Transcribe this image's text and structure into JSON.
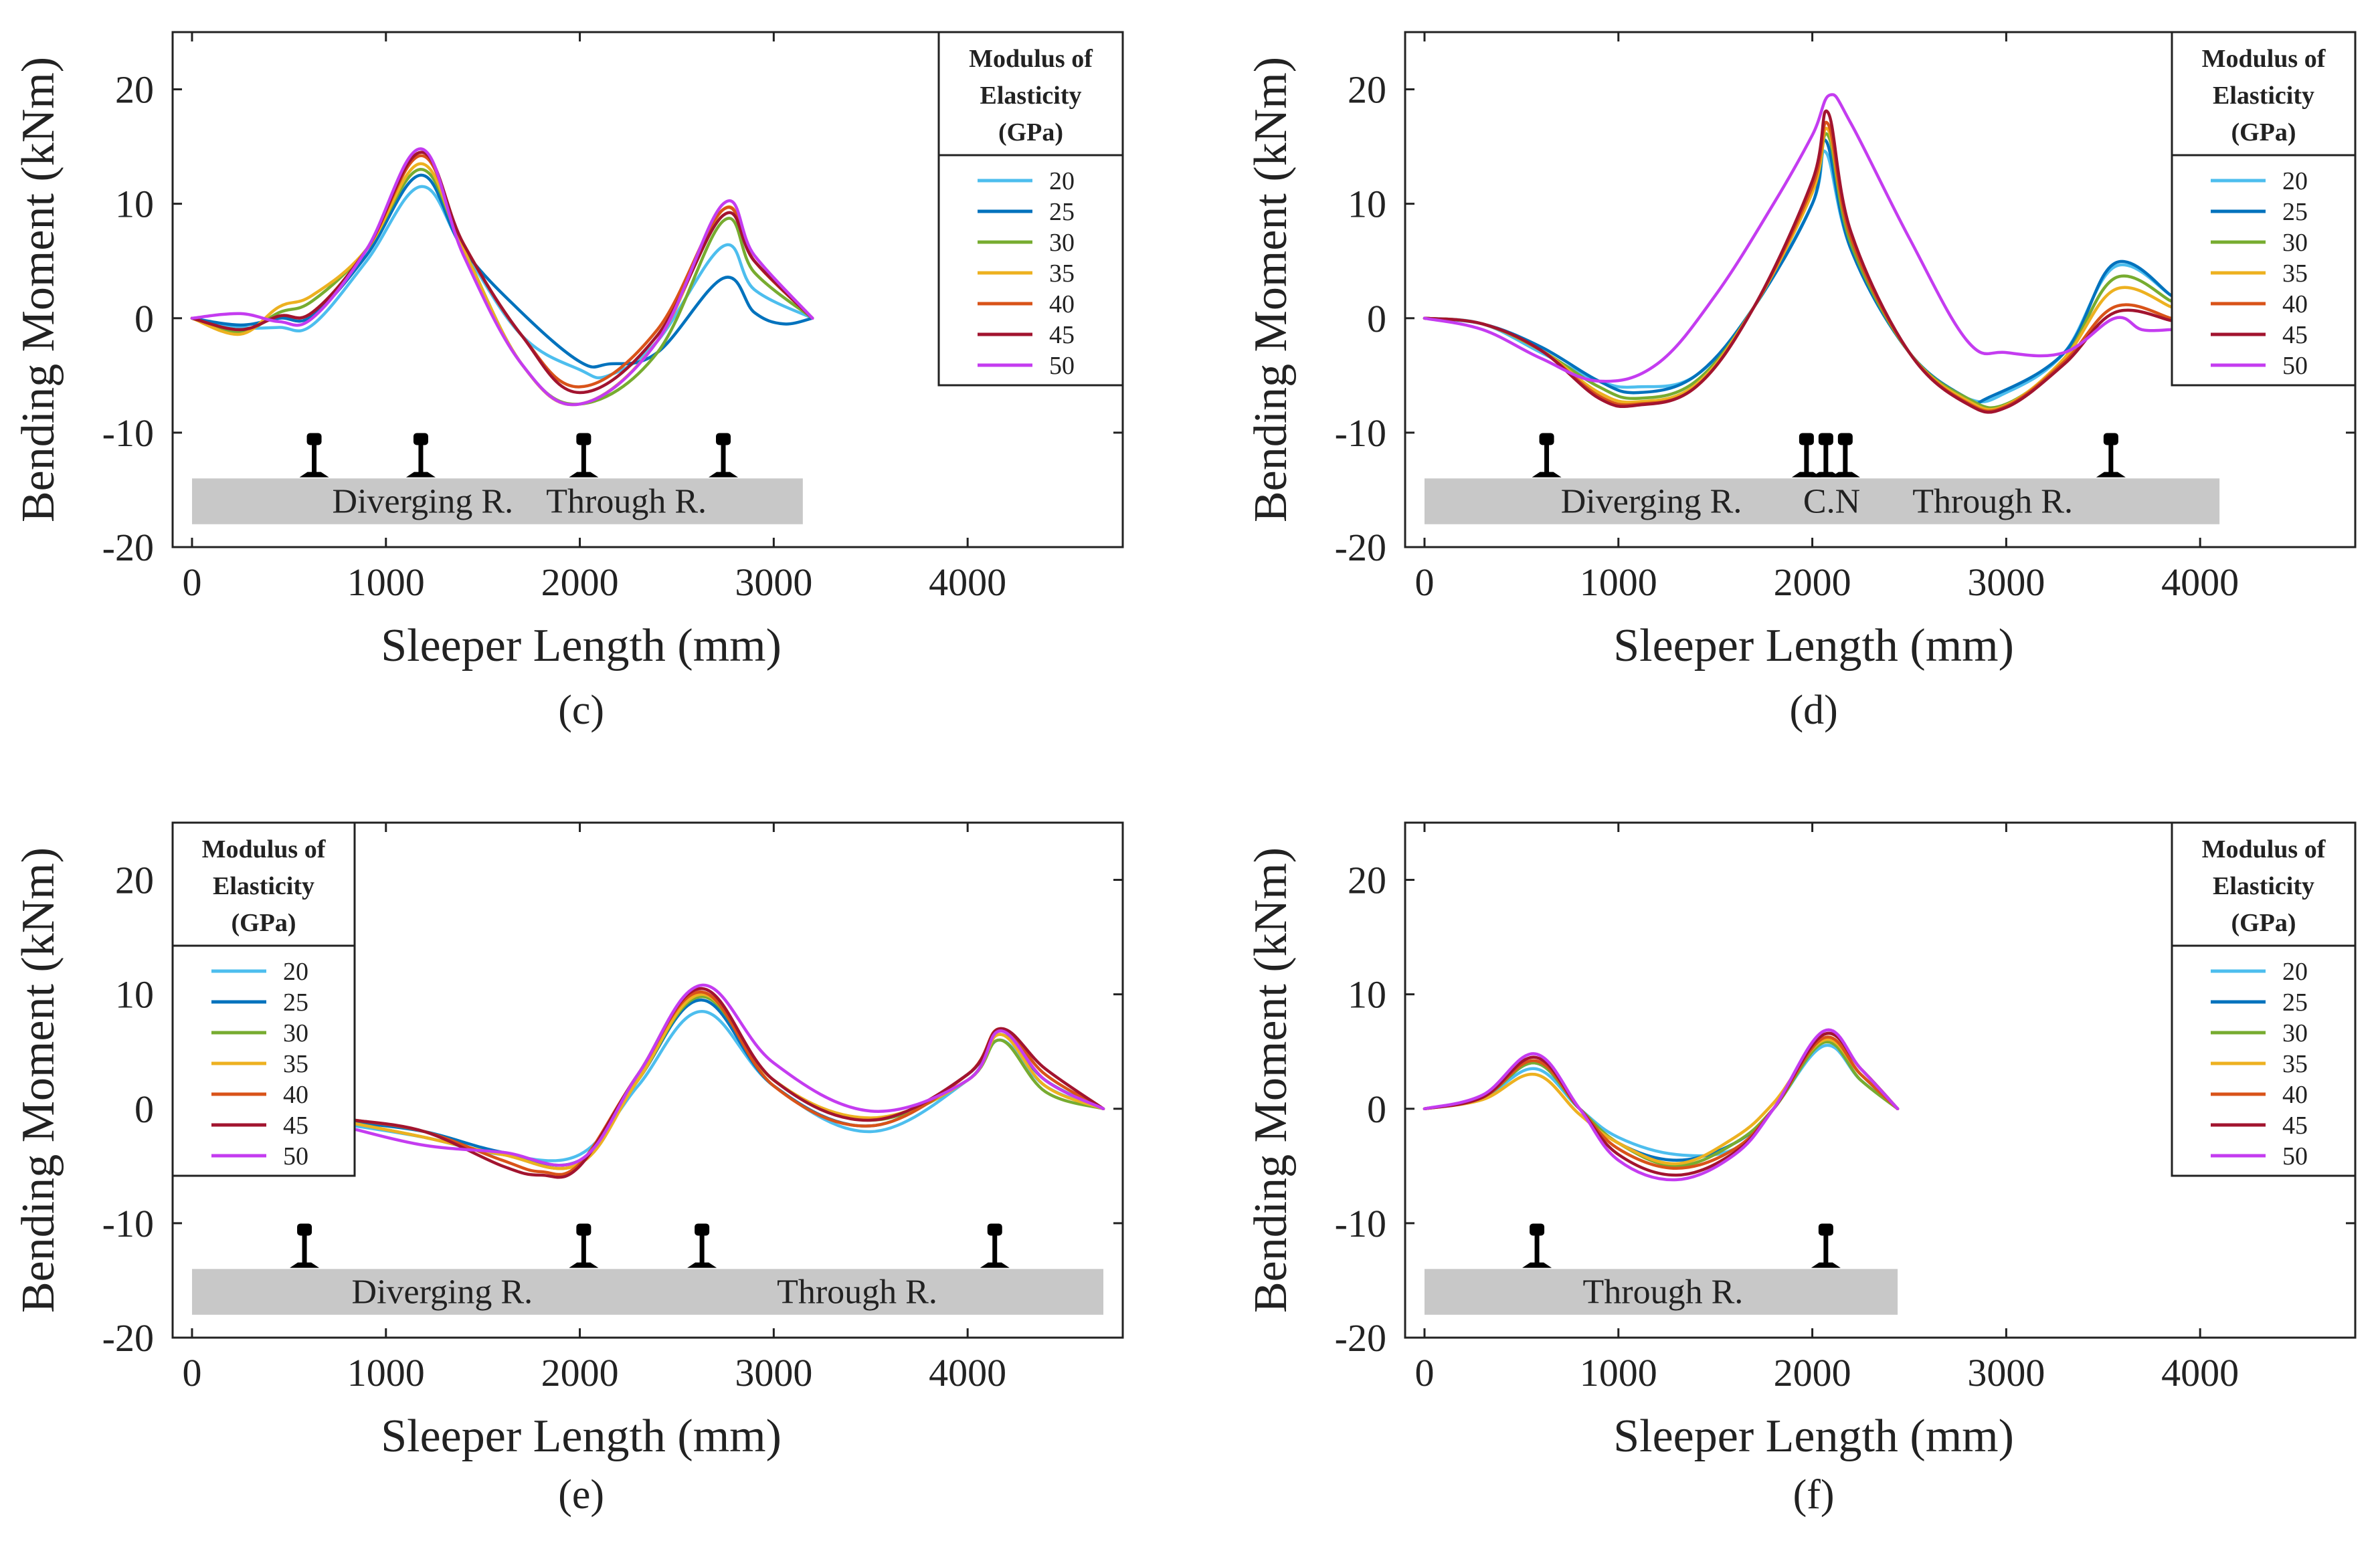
{
  "legend": {
    "title_lines": [
      "Modulus of",
      "Elasticity",
      "(GPa)"
    ],
    "entries": [
      "20",
      "25",
      "30",
      "35",
      "40",
      "45",
      "50"
    ],
    "colors": [
      "#4DBEEE",
      "#0072BD",
      "#77AC30",
      "#EDB120",
      "#D95319",
      "#A2142F",
      "#C43CF0"
    ]
  },
  "chart_data": [
    {
      "id": "c",
      "type": "line",
      "caption": "(c)",
      "xlabel": "Sleeper Length (mm)",
      "ylabel": "Bending Moment (kNm)",
      "xlim": [
        -100,
        4800
      ],
      "ylim": [
        -20,
        25
      ],
      "xticks": [
        0,
        1000,
        2000,
        3000,
        4000
      ],
      "yticks": [
        20,
        10,
        0,
        -10,
        -20
      ],
      "legend_position": "top-right",
      "sleeper": {
        "x_start": 0,
        "x_end": 3150,
        "labels": [
          {
            "text": "Diverging R.",
            "x": 1190
          },
          {
            "text": "Through R.",
            "x": 2240
          }
        ]
      },
      "rail_positions": [
        630,
        1180,
        2020,
        2740
      ],
      "series": [
        {
          "name": "20",
          "x": [
            0,
            250,
            450,
            620,
            900,
            1180,
            1400,
            1700,
            2000,
            2150,
            2400,
            2740,
            2900,
            3200
          ],
          "y": [
            0,
            -0.8,
            -0.8,
            -0.6,
            5,
            11.5,
            6,
            -1.5,
            -4.5,
            -5,
            -2,
            6.3,
            2.5,
            0
          ]
        },
        {
          "name": "25",
          "x": [
            0,
            250,
            450,
            620,
            900,
            1180,
            1400,
            1700,
            2000,
            2150,
            2400,
            2740,
            2900,
            3050,
            3200
          ],
          "y": [
            0,
            -0.6,
            0,
            0.2,
            5.5,
            12.5,
            6,
            0.5,
            -3.8,
            -4,
            -3,
            3.5,
            0.5,
            -0.5,
            0
          ]
        },
        {
          "name": "30",
          "x": [
            0,
            250,
            450,
            620,
            900,
            1180,
            1400,
            1700,
            2000,
            2400,
            2740,
            2900,
            3200
          ],
          "y": [
            0,
            -1.2,
            0.5,
            1.5,
            6,
            13,
            6,
            -4,
            -7.5,
            -3,
            8.5,
            4,
            0
          ]
        },
        {
          "name": "35",
          "x": [
            0,
            250,
            450,
            620,
            900,
            1180,
            1400,
            1700,
            2000,
            2400,
            2740,
            2900,
            3200
          ],
          "y": [
            0,
            -1.4,
            1,
            2,
            6,
            13.5,
            6,
            -4,
            -7.5,
            -2,
            9.5,
            5,
            0
          ]
        },
        {
          "name": "40",
          "x": [
            0,
            250,
            450,
            620,
            900,
            1180,
            1400,
            1700,
            2000,
            2400,
            2740,
            2900,
            3200
          ],
          "y": [
            0,
            -1,
            0.2,
            0.5,
            6,
            14.2,
            6.5,
            -1.5,
            -6,
            -1,
            9.5,
            5,
            0
          ]
        },
        {
          "name": "45",
          "x": [
            0,
            250,
            450,
            620,
            900,
            1180,
            1400,
            1700,
            2000,
            2400,
            2740,
            2900,
            3200
          ],
          "y": [
            0,
            -1,
            0.2,
            0.5,
            6,
            14.5,
            6.5,
            -1.5,
            -6.5,
            -1.5,
            9,
            5,
            0
          ]
        },
        {
          "name": "50",
          "x": [
            0,
            250,
            450,
            620,
            900,
            1180,
            1400,
            1700,
            2000,
            2400,
            2740,
            2900,
            3200
          ],
          "y": [
            0,
            0.4,
            -0.3,
            0,
            6,
            14.8,
            5.5,
            -4,
            -7.5,
            -2,
            10,
            5.5,
            0
          ]
        }
      ]
    },
    {
      "id": "d",
      "type": "line",
      "caption": "(d)",
      "xlabel": "Sleeper Length (mm)",
      "ylabel": "Bending Moment (kNm)",
      "xlim": [
        -100,
        4800
      ],
      "ylim": [
        -20,
        25
      ],
      "xticks": [
        0,
        1000,
        2000,
        3000,
        4000
      ],
      "yticks": [
        20,
        10,
        0,
        -10,
        -20
      ],
      "legend_position": "top-right",
      "sleeper": {
        "x_start": 0,
        "x_end": 4100,
        "labels": [
          {
            "text": "Diverging R.",
            "x": 1170
          },
          {
            "text": "C.N",
            "x": 2100
          },
          {
            "text": "Through R.",
            "x": 2930
          }
        ]
      },
      "rail_positions": [
        630,
        1970,
        2070,
        2170,
        3540
      ],
      "series": [
        {
          "name": "20",
          "x": [
            0,
            300,
            600,
            900,
            1100,
            1400,
            1700,
            2000,
            2070,
            2200,
            2500,
            2800,
            3000,
            3300,
            3560,
            3850
          ],
          "y": [
            0,
            -0.5,
            -3,
            -5.5,
            -6,
            -5,
            1,
            10,
            14.5,
            6,
            -3,
            -7,
            -6.5,
            -3,
            4.5,
            2
          ]
        },
        {
          "name": "25",
          "x": [
            0,
            300,
            600,
            900,
            1100,
            1400,
            1700,
            2000,
            2070,
            2200,
            2500,
            2800,
            2900,
            3300,
            3560,
            3850
          ],
          "y": [
            0,
            -0.5,
            -2.5,
            -5.5,
            -6.5,
            -5,
            1,
            10,
            15.5,
            6,
            -3,
            -7,
            -7,
            -3,
            4.8,
            2
          ]
        },
        {
          "name": "30",
          "x": [
            0,
            300,
            600,
            900,
            1100,
            1400,
            1700,
            2000,
            2080,
            2200,
            2500,
            2800,
            3000,
            3300,
            3560,
            3850
          ],
          "y": [
            0,
            -0.5,
            -2.8,
            -6,
            -7,
            -5.5,
            1,
            11,
            16,
            6.5,
            -3,
            -7,
            -7.5,
            -3.5,
            3.5,
            1.5
          ]
        },
        {
          "name": "35",
          "x": [
            0,
            300,
            600,
            900,
            1100,
            1400,
            1700,
            2000,
            2080,
            2200,
            2500,
            2800,
            3000,
            3300,
            3560,
            3850
          ],
          "y": [
            0,
            -0.5,
            -2.8,
            -6.5,
            -7.3,
            -5.8,
            1,
            11,
            16.5,
            7,
            -3,
            -7.2,
            -7.6,
            -3.5,
            2.5,
            1
          ]
        },
        {
          "name": "40",
          "x": [
            0,
            300,
            600,
            900,
            1100,
            1400,
            1700,
            2000,
            2080,
            2200,
            2500,
            2800,
            3000,
            3300,
            3560,
            3850
          ],
          "y": [
            0,
            -0.5,
            -2.8,
            -6.8,
            -7.5,
            -6,
            1,
            11.5,
            17,
            7,
            -3,
            -7.4,
            -7.7,
            -3.8,
            1,
            0
          ]
        },
        {
          "name": "45",
          "x": [
            0,
            300,
            600,
            900,
            1100,
            1400,
            1700,
            2000,
            2080,
            2200,
            2500,
            2800,
            3000,
            3300,
            3560,
            3850
          ],
          "y": [
            0,
            -0.5,
            -2.8,
            -7,
            -7.6,
            -6,
            1,
            12,
            18,
            7.5,
            -3,
            -7.5,
            -7.8,
            -4,
            0.5,
            -0.2
          ]
        },
        {
          "name": "50",
          "x": [
            0,
            300,
            600,
            900,
            1200,
            1500,
            1800,
            2000,
            2090,
            2200,
            2500,
            2800,
            3000,
            3300,
            3560,
            3700,
            3850
          ],
          "y": [
            0,
            -1,
            -3.5,
            -5.5,
            -4,
            2,
            10,
            16,
            19.5,
            17,
            7,
            -2,
            -3,
            -3,
            0,
            -1,
            -1
          ]
        }
      ]
    },
    {
      "id": "e",
      "type": "line",
      "caption": "(e)",
      "xlabel": "Sleeper Length (mm)",
      "ylabel": "Bending Moment (kNm)",
      "xlim": [
        -100,
        4800
      ],
      "ylim": [
        -20,
        25
      ],
      "xticks": [
        0,
        1000,
        2000,
        3000,
        4000
      ],
      "yticks": [
        20,
        10,
        0,
        -10,
        -20
      ],
      "legend_position": "top-left",
      "sleeper": {
        "x_start": 0,
        "x_end": 4700,
        "labels": [
          {
            "text": "Diverging R.",
            "x": 1290
          },
          {
            "text": "Through R.",
            "x": 3430
          }
        ]
      },
      "rail_positions": [
        580,
        2020,
        2630,
        4140
      ],
      "series": [
        {
          "name": "20",
          "x": [
            840,
            1200,
            1600,
            2000,
            2300,
            2630,
            3000,
            3500,
            4000,
            4170,
            4400,
            4700
          ],
          "y": [
            -1.5,
            -2.5,
            -4,
            -4,
            2,
            8.5,
            2,
            -2,
            2.5,
            6,
            2,
            0
          ]
        },
        {
          "name": "25",
          "x": [
            840,
            1200,
            1600,
            2000,
            2300,
            2630,
            3000,
            3500,
            4000,
            4170,
            4400,
            4700
          ],
          "y": [
            -1.2,
            -2,
            -3.8,
            -4.5,
            2.5,
            9.5,
            2,
            -1.5,
            3,
            6.5,
            2.5,
            0
          ]
        },
        {
          "name": "30",
          "x": [
            840,
            1200,
            1600,
            2000,
            2300,
            2630,
            3000,
            3500,
            4000,
            4170,
            4400,
            4700
          ],
          "y": [
            -1.3,
            -2.5,
            -4,
            -4.8,
            2.5,
            9.8,
            2.5,
            -1,
            2.5,
            6,
            1.5,
            0
          ]
        },
        {
          "name": "35",
          "x": [
            840,
            1200,
            1600,
            2000,
            2300,
            2630,
            3000,
            3500,
            4000,
            4170,
            4400,
            4700
          ],
          "y": [
            -1.3,
            -2.5,
            -4,
            -4.8,
            2.5,
            10,
            2.5,
            -0.8,
            2.5,
            6.5,
            2,
            0
          ]
        },
        {
          "name": "40",
          "x": [
            840,
            1200,
            1600,
            1800,
            2000,
            2300,
            2630,
            3000,
            3500,
            4000,
            4170,
            4400,
            4700
          ],
          "y": [
            -1,
            -2,
            -4.5,
            -5.5,
            -4.8,
            3,
            10.2,
            2,
            -1.5,
            3,
            7,
            3,
            0
          ]
        },
        {
          "name": "45",
          "x": [
            840,
            1200,
            1600,
            1800,
            2000,
            2300,
            2630,
            3000,
            3500,
            4000,
            4170,
            4400,
            4700
          ],
          "y": [
            -1,
            -2,
            -5,
            -5.8,
            -5,
            3,
            10.5,
            2.5,
            -1,
            3,
            7,
            3.5,
            0
          ]
        },
        {
          "name": "50",
          "x": [
            840,
            1200,
            1600,
            2000,
            2300,
            2630,
            3000,
            3500,
            4000,
            4170,
            4400,
            4700
          ],
          "y": [
            -1.8,
            -3.2,
            -3.8,
            -4.5,
            3,
            10.8,
            4,
            -0.2,
            2.5,
            6.8,
            2.5,
            0
          ]
        }
      ]
    },
    {
      "id": "f",
      "type": "line",
      "caption": "(f)",
      "xlabel": "Sleeper Length (mm)",
      "ylabel": "Bending Moment (kNm)",
      "xlim": [
        -100,
        4800
      ],
      "ylim": [
        -20,
        25
      ],
      "xticks": [
        0,
        1000,
        2000,
        3000,
        4000
      ],
      "yticks": [
        20,
        10,
        0,
        -10,
        -20
      ],
      "legend_position": "top-right",
      "sleeper": {
        "x_start": 0,
        "x_end": 2440,
        "labels": [
          {
            "text": "Through R.",
            "x": 1230
          }
        ]
      },
      "rail_positions": [
        580,
        2070
      ],
      "series": [
        {
          "name": "20",
          "x": [
            0,
            300,
            570,
            800,
            1000,
            1300,
            1600,
            1800,
            2060,
            2250,
            2440
          ],
          "y": [
            0,
            1,
            3.5,
            0,
            -2.5,
            -4,
            -3.5,
            0,
            5.5,
            2.5,
            0
          ]
        },
        {
          "name": "25",
          "x": [
            0,
            300,
            570,
            800,
            1000,
            1300,
            1600,
            1800,
            2060,
            2250,
            2440
          ],
          "y": [
            0,
            1,
            4,
            0,
            -3,
            -4.5,
            -3,
            0,
            6,
            3,
            0
          ]
        },
        {
          "name": "30",
          "x": [
            0,
            300,
            570,
            800,
            1000,
            1300,
            1600,
            1800,
            2060,
            2250,
            2440
          ],
          "y": [
            0,
            1,
            4,
            0,
            -3,
            -5,
            -3,
            0,
            5.8,
            2.5,
            0
          ]
        },
        {
          "name": "35",
          "x": [
            0,
            300,
            570,
            800,
            1000,
            1300,
            1600,
            1800,
            2060,
            2250,
            2440
          ],
          "y": [
            0,
            0.8,
            3,
            -0.5,
            -3,
            -4.8,
            -2.5,
            0.5,
            6,
            3,
            0
          ]
        },
        {
          "name": "40",
          "x": [
            0,
            300,
            570,
            800,
            1000,
            1300,
            1600,
            1800,
            2060,
            2250,
            2440
          ],
          "y": [
            0,
            1,
            4.2,
            0,
            -3.5,
            -5.2,
            -3.5,
            0,
            6.2,
            3,
            0
          ]
        },
        {
          "name": "45",
          "x": [
            0,
            300,
            570,
            800,
            1000,
            1300,
            1600,
            1800,
            2060,
            2250,
            2440
          ],
          "y": [
            0,
            1,
            4.5,
            0,
            -4,
            -5.8,
            -3.8,
            0,
            6.5,
            3.5,
            0
          ]
        },
        {
          "name": "50",
          "x": [
            0,
            300,
            570,
            800,
            1000,
            1300,
            1600,
            1800,
            2060,
            2250,
            2440
          ],
          "y": [
            0,
            1.2,
            4.8,
            0,
            -4.5,
            -6.2,
            -4,
            0,
            6.8,
            3.5,
            0
          ]
        }
      ]
    }
  ]
}
